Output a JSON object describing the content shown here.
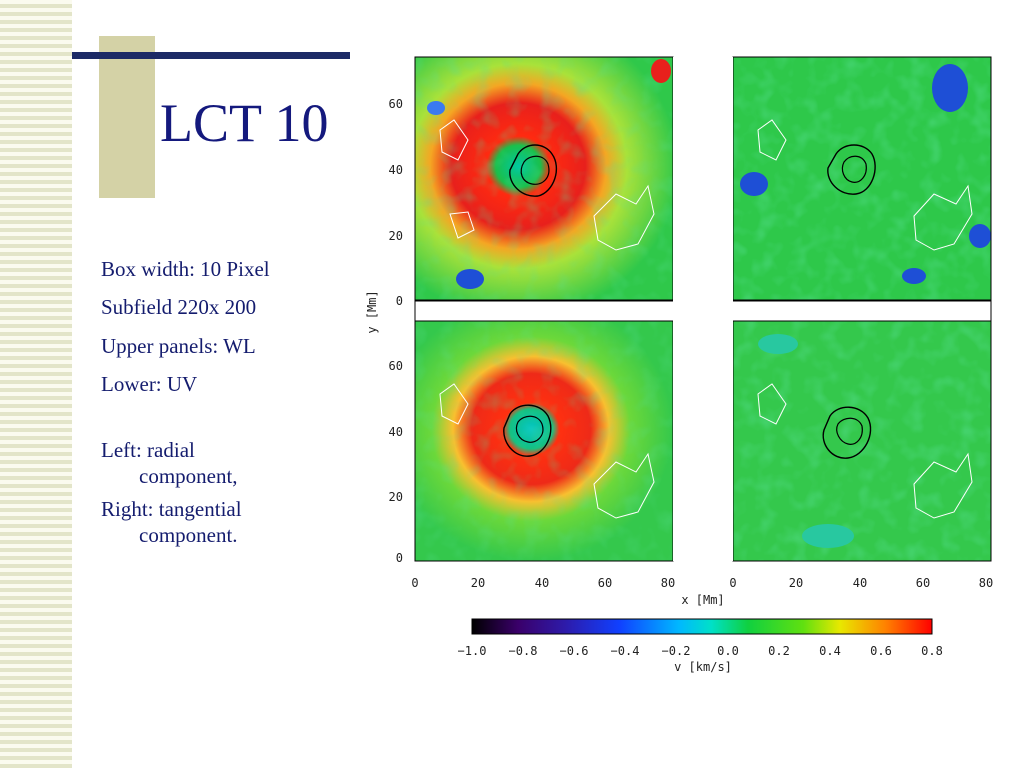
{
  "slide": {
    "title": "LCT 10",
    "bullets": [
      {
        "line1": "Box width: 10 Pixel",
        "line2": ""
      },
      {
        "line1": "Subfield 220x 200",
        "line2": ""
      },
      {
        "line1": "Upper panels: WL",
        "line2": ""
      },
      {
        "line1": "Lower: UV",
        "line2": ""
      },
      {
        "line1": "Left: radial",
        "line2": "component,"
      },
      {
        "line1": "Right: tangential",
        "line2": "component."
      }
    ]
  },
  "figure": {
    "y_axis_label": "y [Mm]",
    "x_axis_label": "x [Mm]",
    "y_ticks": [
      "60",
      "40",
      "20",
      "0"
    ],
    "x_ticks": [
      "0",
      "20",
      "40",
      "60",
      "80"
    ],
    "colorbar_label": "v [km/s]",
    "colorbar_ticks": [
      "−1.0",
      "−0.8",
      "−0.6",
      "−0.4",
      "−0.2",
      "0.0",
      "0.2",
      "0.4",
      "0.6",
      "0.8"
    ],
    "colors": {
      "background_field": "#2ec84a",
      "ring_red": "#e8221e",
      "outflow_blue": "#1e4fd6"
    }
  }
}
